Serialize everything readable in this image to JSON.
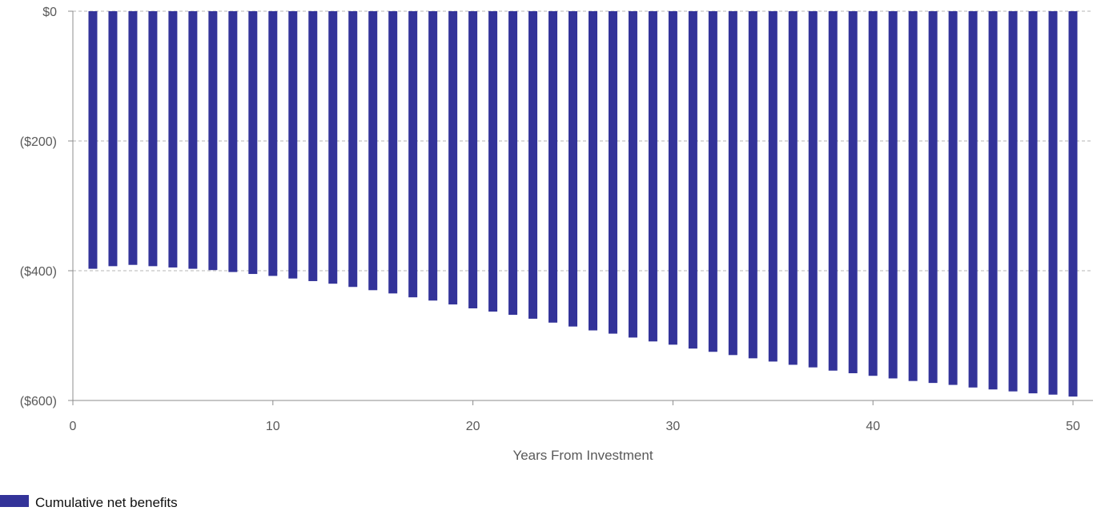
{
  "chart_data": {
    "type": "bar",
    "xlabel": "Years From Investment",
    "ylabel": "",
    "xlim": [
      0,
      51
    ],
    "ylim": [
      -600,
      0
    ],
    "x_ticks": [
      {
        "value": 0,
        "label": "0"
      },
      {
        "value": 10,
        "label": "10"
      },
      {
        "value": 20,
        "label": "20"
      },
      {
        "value": 30,
        "label": "30"
      },
      {
        "value": 40,
        "label": "40"
      },
      {
        "value": 50,
        "label": "50"
      }
    ],
    "y_ticks": [
      {
        "value": 0,
        "label": "$0"
      },
      {
        "value": -200,
        "label": "($200)"
      },
      {
        "value": -400,
        "label": "($400)"
      },
      {
        "value": -600,
        "label": "($600)"
      }
    ],
    "grid": true,
    "legend_position": "bottom-left",
    "series": [
      {
        "name": "Cumulative net benefits",
        "color": "#333399",
        "x": [
          1,
          2,
          3,
          4,
          5,
          6,
          7,
          8,
          9,
          10,
          11,
          12,
          13,
          14,
          15,
          16,
          17,
          18,
          19,
          20,
          21,
          22,
          23,
          24,
          25,
          26,
          27,
          28,
          29,
          30,
          31,
          32,
          33,
          34,
          35,
          36,
          37,
          38,
          39,
          40,
          41,
          42,
          43,
          44,
          45,
          46,
          47,
          48,
          49,
          50
        ],
        "values": [
          -397,
          -393,
          -391,
          -393,
          -395,
          -397,
          -399,
          -402,
          -405,
          -408,
          -412,
          -416,
          -420,
          -425,
          -430,
          -435,
          -441,
          -446,
          -452,
          -458,
          -463,
          -468,
          -474,
          -480,
          -486,
          -492,
          -497,
          -503,
          -509,
          -514,
          -520,
          -525,
          -530,
          -535,
          -540,
          -545,
          -549,
          -554,
          -558,
          -562,
          -566,
          -570,
          -573,
          -576,
          -580,
          -583,
          -586,
          -589,
          -591,
          -594
        ]
      }
    ]
  }
}
